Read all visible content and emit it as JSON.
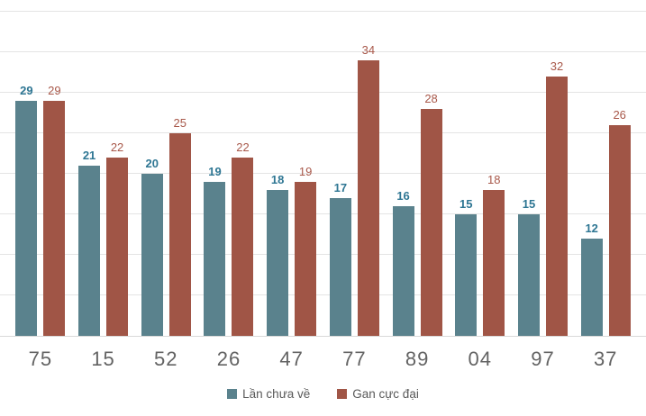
{
  "chart_data": {
    "type": "bar",
    "title": "",
    "xlabel": "",
    "ylabel": "",
    "categories": [
      "75",
      "15",
      "52",
      "26",
      "47",
      "77",
      "89",
      "04",
      "97",
      "37"
    ],
    "series": [
      {
        "name": "Lần chưa về",
        "color": "#5A828D",
        "label_color": "#2E7693",
        "values": [
          29,
          21,
          20,
          19,
          18,
          17,
          16,
          15,
          15,
          12
        ]
      },
      {
        "name": "Gan cực đại",
        "color": "#A05546",
        "label_color": "#A8584A",
        "values": [
          29,
          22,
          25,
          22,
          19,
          34,
          28,
          18,
          32,
          26
        ]
      }
    ],
    "ylim": [
      0,
      40
    ],
    "gridline_step": 5,
    "grid": true,
    "data_labels": true,
    "legend_position": "bottom",
    "axis_label_color": "#636363",
    "gridline_color": "#e4e4e4"
  }
}
